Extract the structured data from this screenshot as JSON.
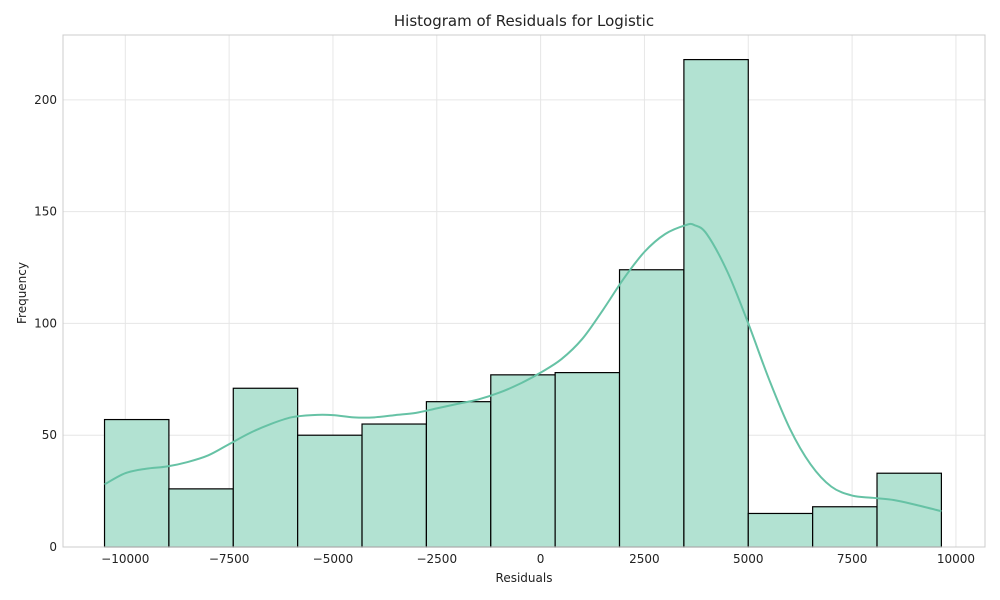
{
  "chart_data": {
    "type": "bar",
    "subtype": "histogram",
    "title": "Histogram of Residuals for Logistic",
    "xlabel": "Residuals",
    "ylabel": "Frequency",
    "xlim": [
      -11500,
      10700
    ],
    "ylim": [
      0,
      229
    ],
    "xticks": [
      -10000,
      -7500,
      -5000,
      -2500,
      0,
      2500,
      5000,
      7500,
      10000
    ],
    "xtick_labels": [
      "−10000",
      "−7500",
      "−5000",
      "−2500",
      "0",
      "2500",
      "5000",
      "7500",
      "10000"
    ],
    "yticks": [
      0,
      50,
      100,
      150,
      200
    ],
    "ytick_labels": [
      "0",
      "50",
      "100",
      "150",
      "200"
    ],
    "grid": true,
    "bin_edges": [
      -10500,
      -8950,
      -7400,
      -5850,
      -4300,
      -2750,
      -1200,
      350,
      1900,
      3450,
      5000,
      6550,
      8100,
      9650
    ],
    "counts": [
      57,
      26,
      71,
      50,
      55,
      65,
      77,
      78,
      124,
      218,
      15,
      18,
      33
    ],
    "bar_color": "#b2e2d2",
    "edge_color": "#000000",
    "kde": {
      "color": "#66c2a5",
      "x": [
        -10500,
        -10000,
        -9500,
        -9000,
        -8500,
        -8000,
        -7500,
        -7000,
        -6500,
        -6000,
        -5500,
        -5000,
        -4500,
        -4000,
        -3500,
        -3000,
        -2500,
        -2000,
        -1500,
        -1000,
        -500,
        0,
        500,
        1000,
        1500,
        2000,
        2500,
        3000,
        3500,
        3700,
        4000,
        4500,
        5000,
        5500,
        6000,
        6500,
        7000,
        7500,
        8000,
        8500,
        9000,
        9650
      ],
      "y": [
        28,
        33,
        35,
        36,
        38,
        41,
        46,
        51,
        55,
        58,
        59,
        59,
        58,
        58,
        59,
        60,
        62,
        64,
        66,
        69,
        73,
        78,
        84,
        93,
        106,
        120,
        132,
        140,
        144,
        144,
        140,
        123,
        100,
        75,
        53,
        37,
        27,
        23,
        22,
        21,
        19,
        16
      ]
    }
  }
}
